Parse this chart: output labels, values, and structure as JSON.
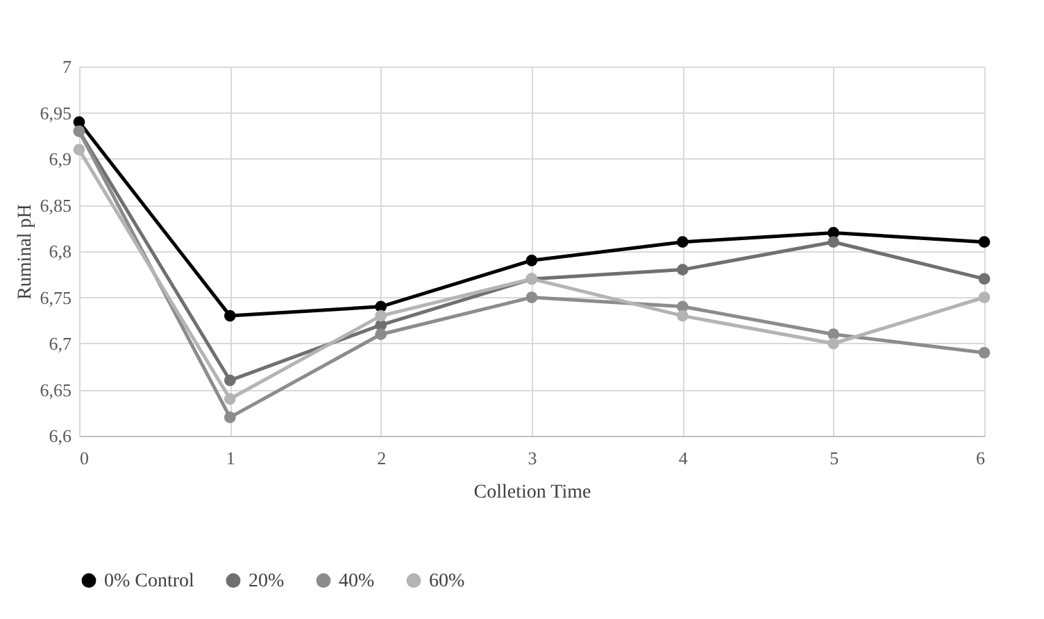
{
  "chart_data": {
    "type": "line",
    "xlabel": "Colletion Time",
    "ylabel": "Ruminal pH",
    "x": [
      0,
      1,
      2,
      3,
      4,
      5,
      6
    ],
    "xlim": [
      0,
      6
    ],
    "xticks": [
      0,
      1,
      2,
      3,
      4,
      5,
      6
    ],
    "ylim": [
      6.6,
      7
    ],
    "yticks": [
      {
        "value": 6.6,
        "label": "6,6"
      },
      {
        "value": 6.65,
        "label": "6,65"
      },
      {
        "value": 6.7,
        "label": "6,7"
      },
      {
        "value": 6.75,
        "label": "6,75"
      },
      {
        "value": 6.8,
        "label": "6,8"
      },
      {
        "value": 6.85,
        "label": "6,85"
      },
      {
        "value": 6.9,
        "label": "6,9"
      },
      {
        "value": 6.95,
        "label": "6,95"
      },
      7
    ],
    "grid": true,
    "legend": "bottom",
    "marker": "circle",
    "line_style": "solid",
    "series": [
      {
        "name": "0% Control",
        "color": "#000000",
        "values": [
          6.94,
          6.73,
          6.74,
          6.79,
          6.81,
          6.82,
          6.81
        ]
      },
      {
        "name": "20%",
        "color": "#707070",
        "values": [
          6.93,
          6.66,
          6.72,
          6.77,
          6.78,
          6.81,
          6.77
        ]
      },
      {
        "name": "40%",
        "color": "#8c8c8c",
        "values": [
          6.93,
          6.62,
          6.71,
          6.75,
          6.74,
          6.71,
          6.69
        ]
      },
      {
        "name": "60%",
        "color": "#b4b4b4",
        "values": [
          6.91,
          6.64,
          6.73,
          6.77,
          6.73,
          6.7,
          6.75
        ]
      }
    ]
  }
}
